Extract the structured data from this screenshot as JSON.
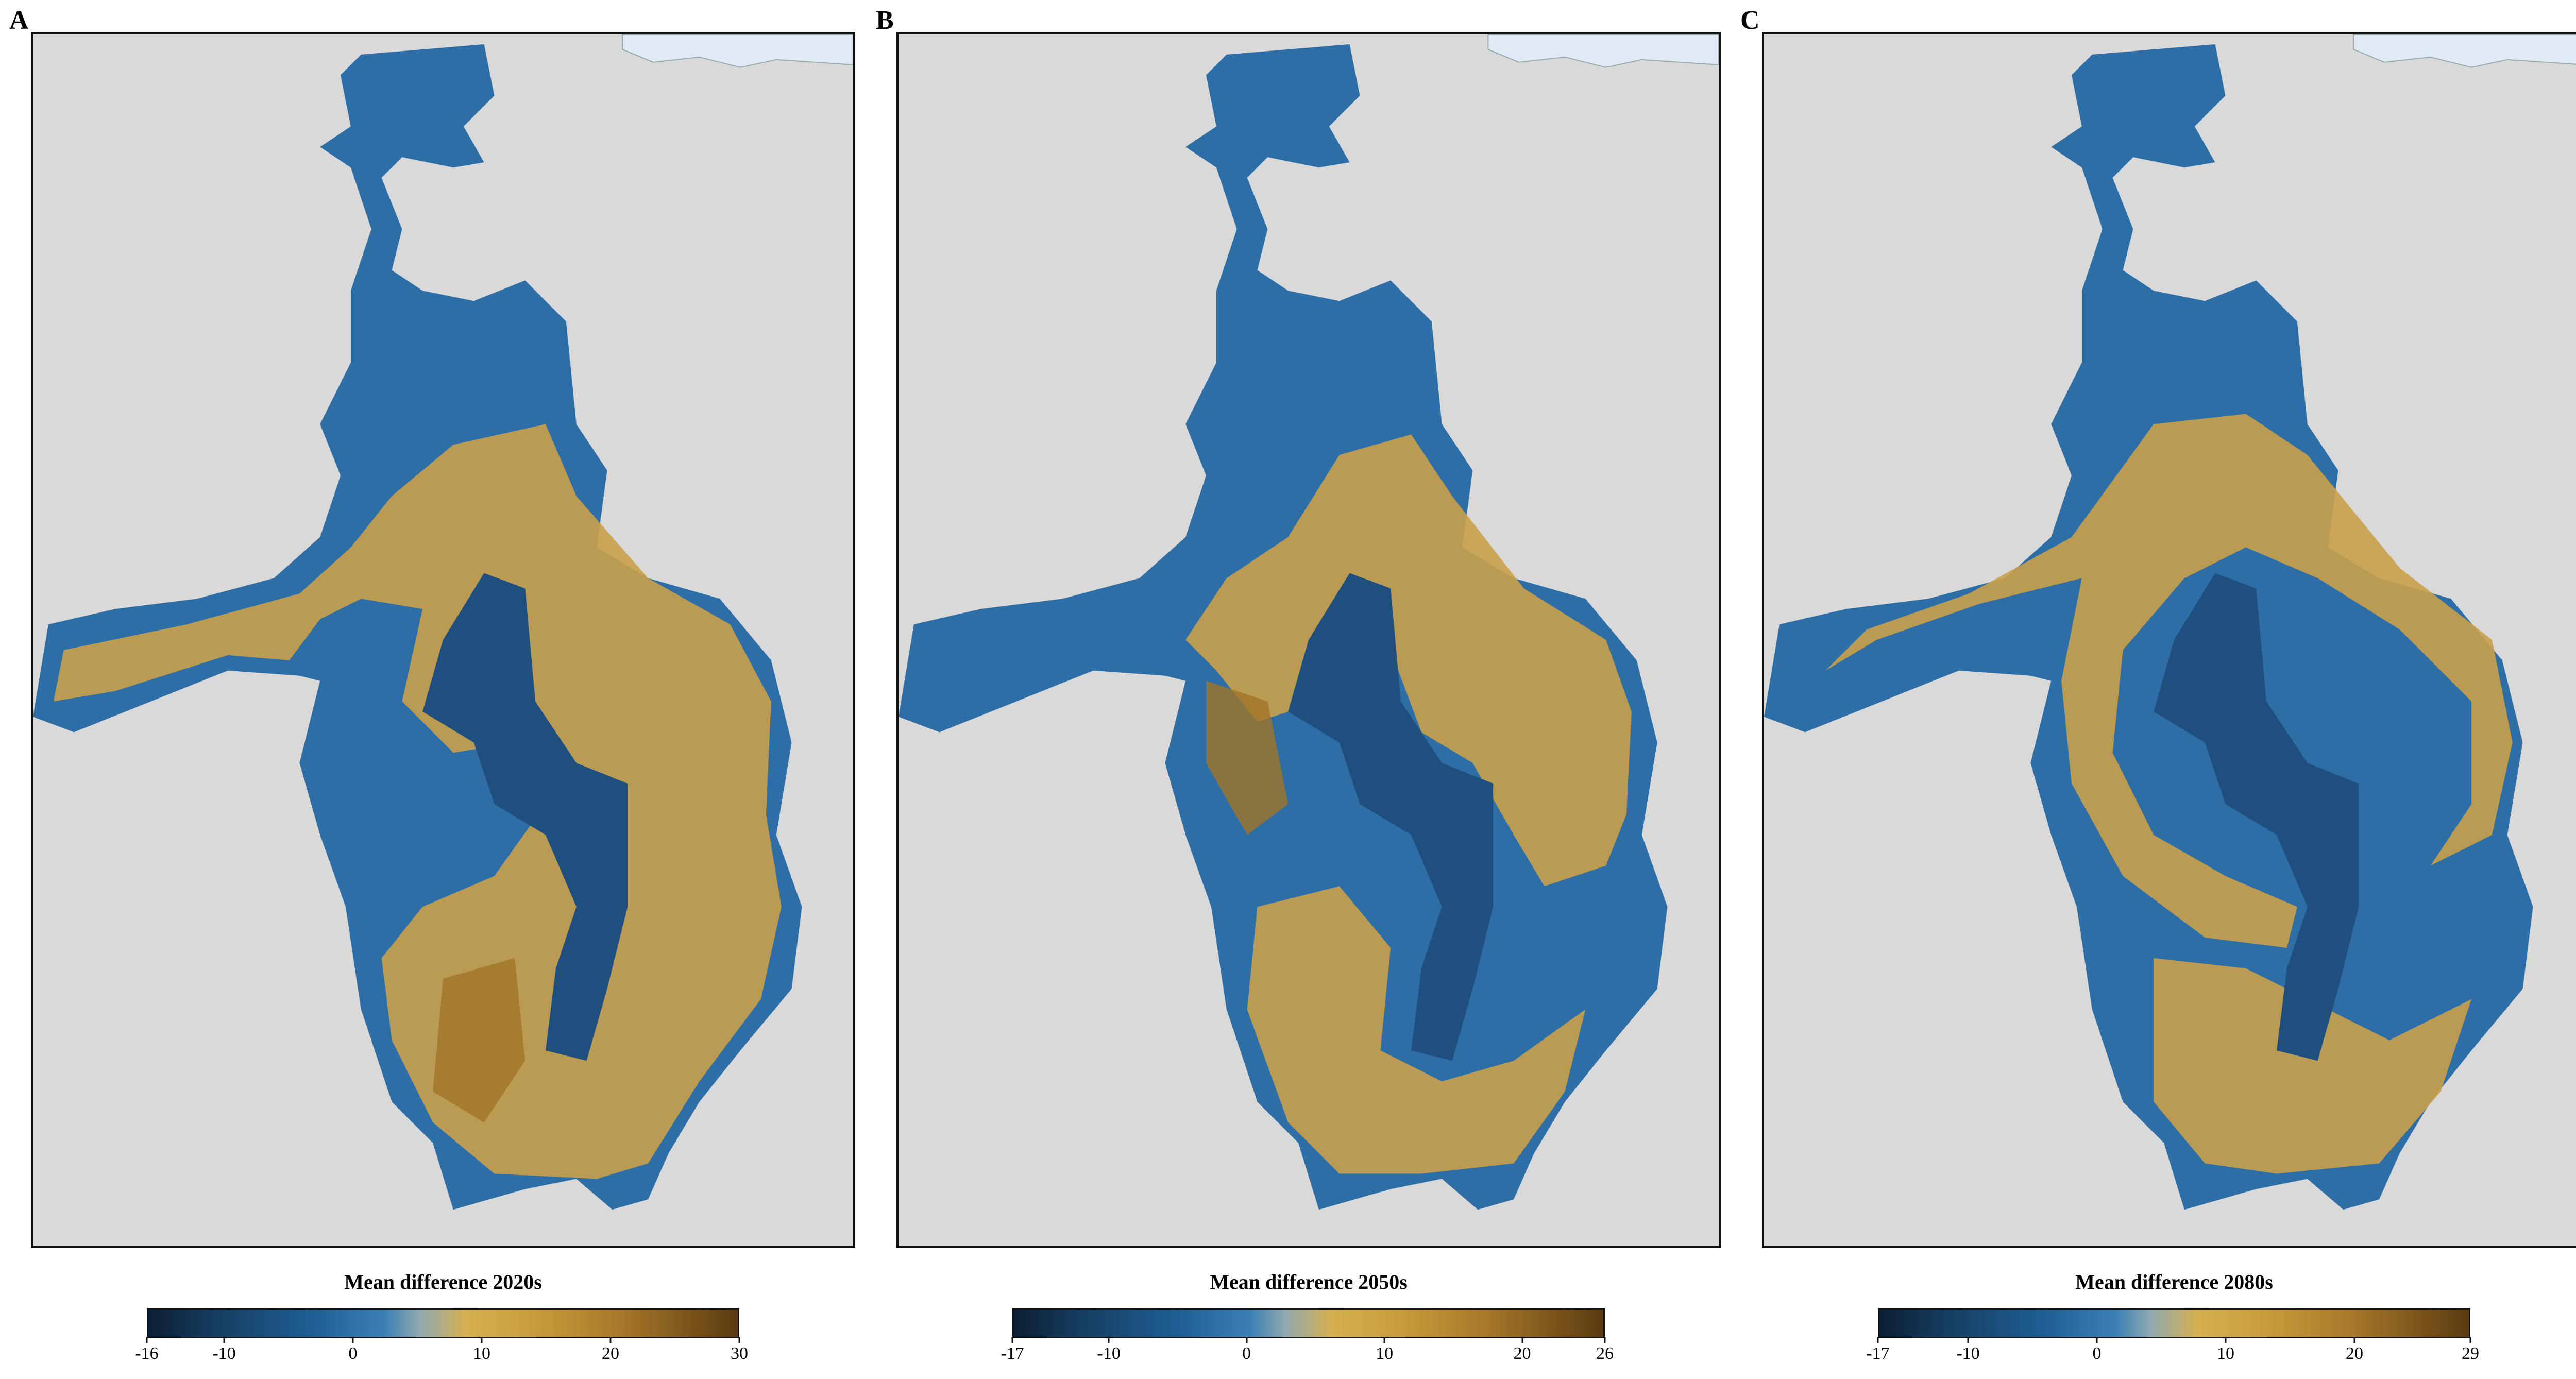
{
  "panels": [
    {
      "letter": "A",
      "legend_title": "Mean difference 2020s",
      "scale": {
        "min": -16,
        "max": 30
      },
      "ticks": [
        "-16",
        "-10",
        "0",
        "10",
        "20",
        "30"
      ],
      "tick_values": [
        -16,
        -10,
        0,
        10,
        20,
        30
      ]
    },
    {
      "letter": "B",
      "legend_title": "Mean difference 2050s",
      "scale": {
        "min": -17,
        "max": 26
      },
      "ticks": [
        "-17",
        "-10",
        "0",
        "10",
        "20",
        "26"
      ],
      "tick_values": [
        -17,
        -10,
        0,
        10,
        20,
        26
      ]
    },
    {
      "letter": "C",
      "legend_title": "Mean difference 2080s",
      "scale": {
        "min": -17,
        "max": 29
      },
      "ticks": [
        "-17",
        "-10",
        "0",
        "10",
        "20",
        "29"
      ],
      "tick_values": [
        -17,
        -10,
        0,
        10,
        20,
        29
      ]
    }
  ],
  "colors": {
    "background_land": "#d9d9d9",
    "water": "#dfeaf5",
    "negative": "#2e6ea6",
    "negative_dark": "#0f2f4f",
    "positive": "#c9a04a",
    "positive_dark": "#7a5518",
    "frame": "#111111"
  }
}
